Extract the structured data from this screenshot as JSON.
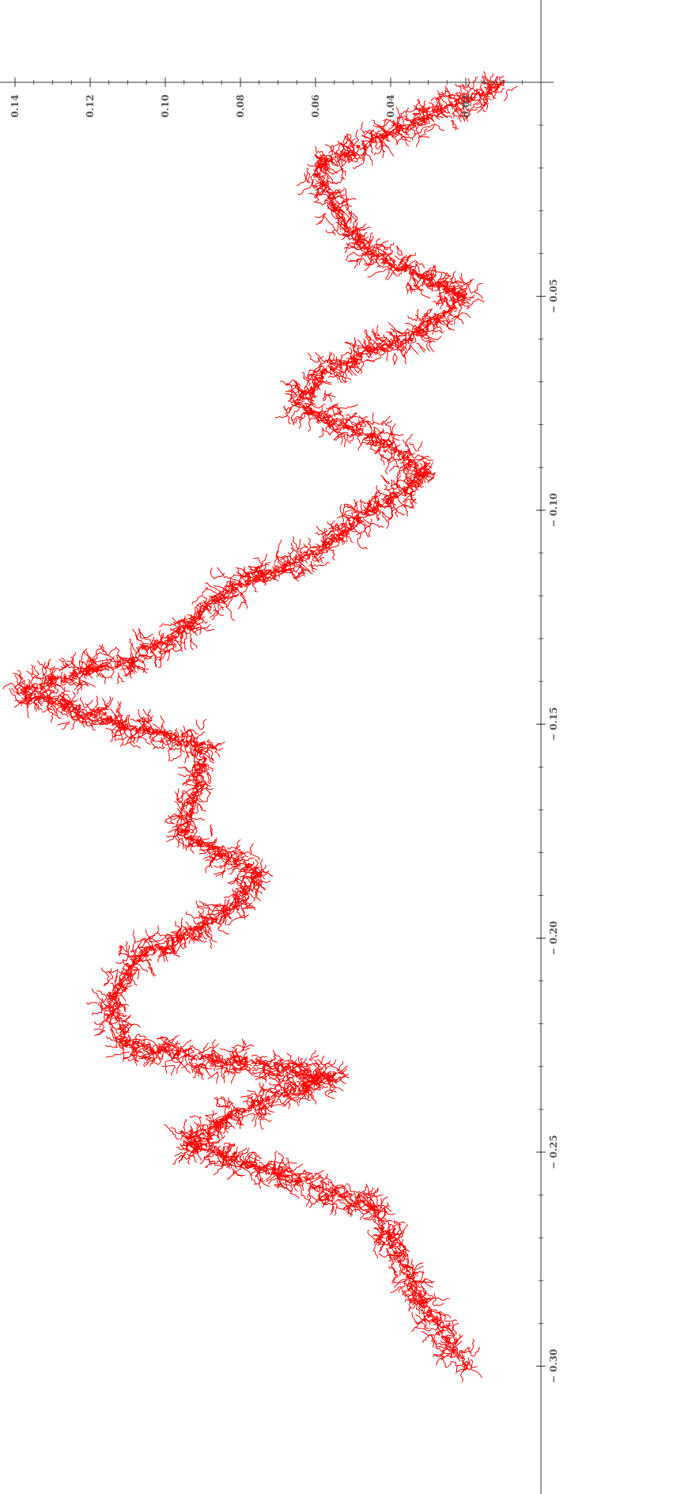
{
  "chart_data": {
    "type": "line",
    "title": "",
    "xlabel": "",
    "ylabel": "",
    "orientation": "rotated-90-clockwise",
    "x_axis": {
      "range": [
        -0.305,
        0.005
      ],
      "ticks": [
        -0.3,
        -0.25,
        -0.2,
        -0.15,
        -0.1,
        -0.05
      ],
      "tick_labels": [
        "− 0.30",
        "− 0.25",
        "− 0.20",
        "− 0.15",
        "− 0.10",
        "− 0.05"
      ]
    },
    "y_axis": {
      "range": [
        0.0,
        0.145
      ],
      "ticks": [
        0.02,
        0.04,
        0.06,
        0.08,
        0.1,
        0.12,
        0.14
      ],
      "tick_labels": [
        "0.02",
        "0.04",
        "0.06",
        "0.08",
        "0.10",
        "0.12",
        "0.14"
      ]
    },
    "grid": false,
    "legend": "none",
    "series": [
      {
        "color": "#ff0000",
        "description_points": [
          [
            -0.3,
            0.02
          ],
          [
            -0.29,
            0.028
          ],
          [
            -0.28,
            0.035
          ],
          [
            -0.27,
            0.04
          ],
          [
            -0.262,
            0.045
          ],
          [
            -0.255,
            0.07
          ],
          [
            -0.248,
            0.095
          ],
          [
            -0.24,
            0.08
          ],
          [
            -0.232,
            0.055
          ],
          [
            -0.225,
            0.11
          ],
          [
            -0.215,
            0.115
          ],
          [
            -0.205,
            0.108
          ],
          [
            -0.195,
            0.085
          ],
          [
            -0.185,
            0.075
          ],
          [
            -0.175,
            0.095
          ],
          [
            -0.165,
            0.092
          ],
          [
            -0.155,
            0.09
          ],
          [
            -0.148,
            0.12
          ],
          [
            -0.142,
            0.138
          ],
          [
            -0.135,
            0.11
          ],
          [
            -0.128,
            0.095
          ],
          [
            -0.118,
            0.082
          ],
          [
            -0.11,
            0.06
          ],
          [
            -0.1,
            0.045
          ],
          [
            -0.092,
            0.03
          ],
          [
            -0.085,
            0.04
          ],
          [
            -0.075,
            0.065
          ],
          [
            -0.068,
            0.058
          ],
          [
            -0.06,
            0.035
          ],
          [
            -0.05,
            0.02
          ],
          [
            -0.04,
            0.045
          ],
          [
            -0.03,
            0.055
          ],
          [
            -0.02,
            0.06
          ],
          [
            -0.01,
            0.035
          ],
          [
            0.0,
            0.01
          ]
        ]
      }
    ]
  }
}
